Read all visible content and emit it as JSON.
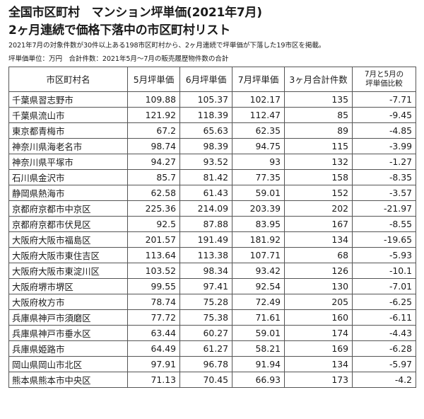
{
  "title_line1": "全国市区町村　マンション坪単価(2021年7月)",
  "title_line2": "2ヶ月連続で価格下落中の市区町村リスト",
  "description": "2021年7月の対象件数が30件以上ある198市区町村から、2ヶ月連続で坪単価が下落した19市区を掲載。",
  "unit_note": "坪単価単位：万円　合計件数：2021年5月～7月の販売履歴物件数の合計",
  "table": {
    "headers": {
      "name": "市区町村名",
      "may": "5月坪単価",
      "jun": "6月坪単価",
      "jul": "7月坪単価",
      "total": "3ヶ月合計件数",
      "ratio_line1": "7月と5月の",
      "ratio_line2": "坪単価比較"
    },
    "rows": [
      {
        "name": "千葉県習志野市",
        "may": "109.88",
        "jun": "105.37",
        "jul": "102.17",
        "total": "135",
        "ratio": "-7.71"
      },
      {
        "name": "千葉県流山市",
        "may": "121.92",
        "jun": "118.39",
        "jul": "112.47",
        "total": "85",
        "ratio": "-9.45"
      },
      {
        "name": "東京都青梅市",
        "may": "67.2",
        "jun": "65.63",
        "jul": "62.35",
        "total": "89",
        "ratio": "-4.85"
      },
      {
        "name": "神奈川県海老名市",
        "may": "98.74",
        "jun": "98.39",
        "jul": "94.75",
        "total": "115",
        "ratio": "-3.99"
      },
      {
        "name": "神奈川県平塚市",
        "may": "94.27",
        "jun": "93.52",
        "jul": "93",
        "total": "132",
        "ratio": "-1.27"
      },
      {
        "name": "石川県金沢市",
        "may": "85.7",
        "jun": "81.42",
        "jul": "77.35",
        "total": "158",
        "ratio": "-8.35"
      },
      {
        "name": "静岡県熱海市",
        "may": "62.58",
        "jun": "61.43",
        "jul": "59.01",
        "total": "152",
        "ratio": "-3.57"
      },
      {
        "name": "京都府京都市中京区",
        "may": "225.36",
        "jun": "214.09",
        "jul": "203.39",
        "total": "202",
        "ratio": "-21.97"
      },
      {
        "name": "京都府京都市伏見区",
        "may": "92.5",
        "jun": "87.88",
        "jul": "83.95",
        "total": "167",
        "ratio": "-8.55"
      },
      {
        "name": "大阪府大阪市福島区",
        "may": "201.57",
        "jun": "191.49",
        "jul": "181.92",
        "total": "134",
        "ratio": "-19.65"
      },
      {
        "name": "大阪府大阪市東住吉区",
        "may": "113.64",
        "jun": "113.38",
        "jul": "107.71",
        "total": "68",
        "ratio": "-5.93"
      },
      {
        "name": "大阪府大阪市東淀川区",
        "may": "103.52",
        "jun": "98.34",
        "jul": "93.42",
        "total": "126",
        "ratio": "-10.1"
      },
      {
        "name": "大阪府堺市堺区",
        "may": "99.55",
        "jun": "97.41",
        "jul": "92.54",
        "total": "130",
        "ratio": "-7.01"
      },
      {
        "name": "大阪府枚方市",
        "may": "78.74",
        "jun": "75.28",
        "jul": "72.49",
        "total": "205",
        "ratio": "-6.25"
      },
      {
        "name": "兵庫県神戸市須磨区",
        "may": "77.72",
        "jun": "75.38",
        "jul": "71.61",
        "total": "160",
        "ratio": "-6.11"
      },
      {
        "name": "兵庫県神戸市垂水区",
        "may": "63.44",
        "jun": "60.27",
        "jul": "59.01",
        "total": "174",
        "ratio": "-4.43"
      },
      {
        "name": "兵庫県姫路市",
        "may": "64.49",
        "jun": "61.27",
        "jul": "58.21",
        "total": "169",
        "ratio": "-6.28"
      },
      {
        "name": "岡山県岡山市北区",
        "may": "97.91",
        "jun": "96.78",
        "jul": "91.94",
        "total": "134",
        "ratio": "-5.97"
      },
      {
        "name": "熊本県熊本市中央区",
        "may": "71.13",
        "jun": "70.45",
        "jul": "66.93",
        "total": "173",
        "ratio": "-4.2"
      }
    ]
  }
}
